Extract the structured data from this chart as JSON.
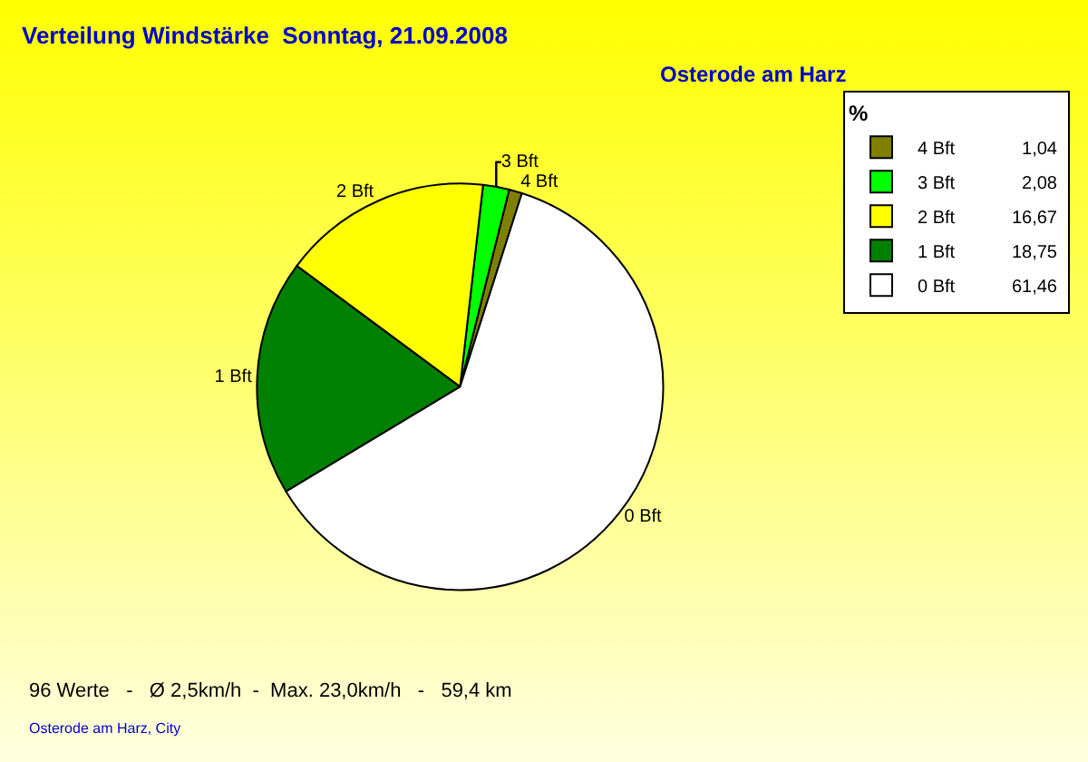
{
  "chart_data": {
    "type": "pie",
    "title": "Verteilung Windstärke  Sonntag, 21.09.2008",
    "subtitle": "Osterode am Harz",
    "legend_title": "%",
    "categories": [
      "4 Bft",
      "3 Bft",
      "2 Bft",
      "1 Bft",
      "0 Bft"
    ],
    "values": [
      1.04,
      2.08,
      16.67,
      18.75,
      61.46
    ],
    "value_labels": [
      "1,04",
      "2,08",
      "16,67",
      "18,75",
      "61,46"
    ],
    "colors": [
      "#808000",
      "#00ff00",
      "#ffff00",
      "#008000",
      "#ffffff"
    ],
    "legend": "top right",
    "annotations": [
      "96 Werte   -   Ø 2,5km/h  -  Max. 23,0km/h   -   59,4 km",
      "Osterode am Harz, City"
    ]
  }
}
